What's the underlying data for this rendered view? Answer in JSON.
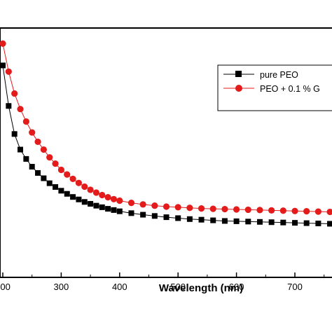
{
  "chart_data": {
    "type": "line",
    "xlabel": "Wavelength (nm)",
    "ylabel": "",
    "xlim": [
      200,
      780
    ],
    "ylim": [
      0,
      1
    ],
    "x_ticks": [
      "200",
      "300",
      "400",
      "500",
      "600",
      "700"
    ],
    "grid": false,
    "legend_position": "top-right",
    "series": [
      {
        "name": "pure PEO",
        "color": "#000000",
        "marker": "square",
        "x": [
          200,
          210,
          220,
          230,
          240,
          250,
          260,
          270,
          280,
          290,
          300,
          310,
          320,
          330,
          340,
          350,
          360,
          370,
          380,
          390,
          400,
          420,
          440,
          460,
          480,
          500,
          520,
          540,
          560,
          580,
          600,
          620,
          640,
          660,
          680,
          700,
          720,
          740,
          760,
          780
        ],
        "values": [
          0.68,
          0.55,
          0.46,
          0.41,
          0.38,
          0.355,
          0.335,
          0.318,
          0.302,
          0.29,
          0.278,
          0.268,
          0.258,
          0.25,
          0.242,
          0.236,
          0.23,
          0.225,
          0.22,
          0.216,
          0.212,
          0.206,
          0.201,
          0.197,
          0.193,
          0.19,
          0.187,
          0.185,
          0.183,
          0.181,
          0.18,
          0.179,
          0.178,
          0.177,
          0.176,
          0.175,
          0.174,
          0.173,
          0.172,
          0.171
        ]
      },
      {
        "name": "PEO  + 0.1 % G",
        "color": "#e31b1b",
        "marker": "circle",
        "x": [
          200,
          210,
          220,
          230,
          240,
          250,
          260,
          270,
          280,
          290,
          300,
          310,
          320,
          330,
          340,
          350,
          360,
          370,
          380,
          390,
          400,
          420,
          440,
          460,
          480,
          500,
          520,
          540,
          560,
          580,
          600,
          620,
          640,
          660,
          680,
          700,
          720,
          740,
          760,
          780
        ],
        "values": [
          0.75,
          0.66,
          0.59,
          0.54,
          0.5,
          0.465,
          0.435,
          0.41,
          0.385,
          0.365,
          0.345,
          0.33,
          0.316,
          0.303,
          0.291,
          0.281,
          0.272,
          0.264,
          0.257,
          0.251,
          0.246,
          0.239,
          0.234,
          0.23,
          0.227,
          0.225,
          0.223,
          0.221,
          0.22,
          0.219,
          0.218,
          0.217,
          0.216,
          0.215,
          0.214,
          0.213,
          0.212,
          0.211,
          0.21,
          0.209
        ]
      }
    ]
  }
}
